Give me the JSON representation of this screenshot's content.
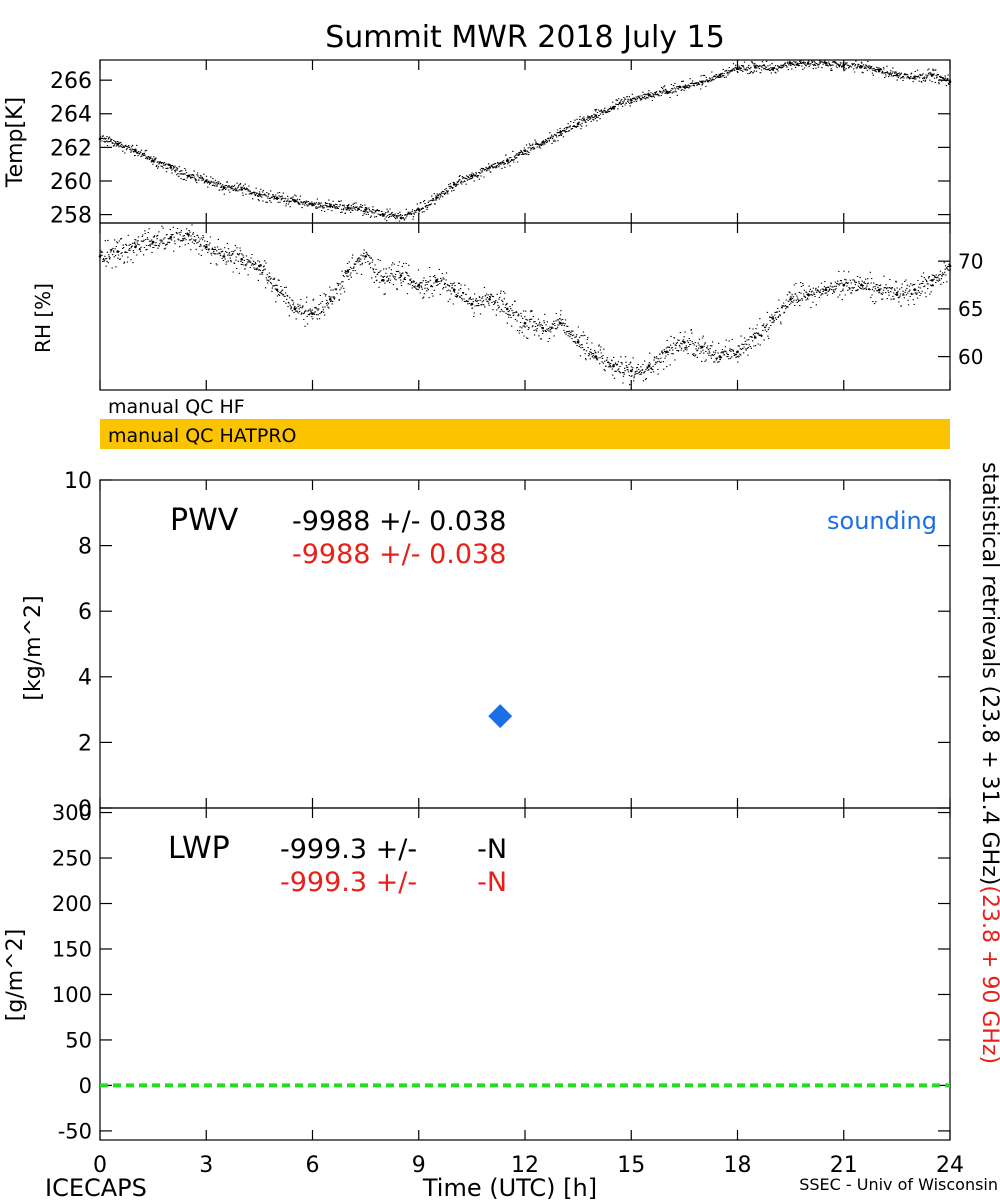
{
  "page": {
    "title": "Summit MWR 2018 July 15",
    "footer_left": "ICECAPS",
    "footer_right": "SSEC - Univ of Wisconsin",
    "right_label_black": "statistical retrievals (23.8 + 31.4 GHz)",
    "right_label_red": "(23.8 + 90 GHz)"
  },
  "colors": {
    "axis": "#000000",
    "red_text": "#e8201a",
    "sounding_blue": "#1a6fe6",
    "qc_orange": "#fcc400",
    "lwp_green": "#22dd22"
  },
  "qc": {
    "hf_label": "manual QC HF",
    "hatpro_label": "manual QC HATPRO"
  },
  "chart_data": [
    {
      "name": "temperature",
      "type": "scatter",
      "ylabel": "Temp[K]",
      "xlim": [
        0,
        24
      ],
      "ylim": [
        257.5,
        267.2
      ],
      "yticks": [
        "258",
        "260",
        "262",
        "264",
        "266"
      ],
      "x": [
        0,
        0.5,
        1,
        1.5,
        2,
        2.5,
        3,
        3.5,
        4,
        4.5,
        5,
        5.5,
        6,
        6.5,
        7,
        7.5,
        8,
        8.5,
        9,
        9.5,
        10,
        10.5,
        11,
        11.5,
        12,
        12.5,
        13,
        13.5,
        14,
        14.5,
        15,
        15.5,
        16,
        16.5,
        17,
        17.5,
        18,
        18.5,
        19,
        19.5,
        20,
        20.5,
        21,
        21.5,
        22,
        22.5,
        23,
        23.5,
        24
      ],
      "y": [
        262.5,
        262.2,
        261.8,
        261.2,
        260.8,
        260.3,
        260.0,
        259.6,
        259.5,
        259.2,
        259.0,
        258.8,
        258.6,
        258.5,
        258.4,
        258.3,
        258.0,
        257.8,
        258.3,
        259.0,
        259.8,
        260.3,
        260.8,
        261.2,
        261.8,
        262.3,
        262.9,
        263.4,
        263.9,
        264.4,
        264.8,
        265.1,
        265.3,
        265.6,
        265.9,
        266.3,
        266.7,
        266.8,
        266.7,
        267.0,
        267.0,
        267.0,
        266.9,
        266.8,
        266.6,
        266.3,
        266.2,
        266.3,
        265.9
      ],
      "noise": 0.25
    },
    {
      "name": "relative_humidity",
      "type": "scatter",
      "ylabel": "RH [%]",
      "xlim": [
        0,
        24
      ],
      "ylim": [
        56.5,
        74
      ],
      "yticks": [
        "60",
        "65",
        "70"
      ],
      "x": [
        0,
        0.5,
        1,
        1.5,
        2,
        2.5,
        3,
        3.5,
        4,
        4.5,
        5,
        5.5,
        6,
        6.5,
        7,
        7.5,
        8,
        8.5,
        9,
        9.5,
        10,
        10.5,
        11,
        11.5,
        12,
        12.5,
        13,
        13.5,
        14,
        14.5,
        15,
        15.5,
        16,
        16.5,
        17,
        17.5,
        18,
        18.5,
        19,
        19.5,
        20,
        20.5,
        21,
        21.5,
        22,
        22.5,
        23,
        23.5,
        24
      ],
      "y": [
        70.5,
        71.0,
        71.5,
        72.0,
        72.5,
        72.8,
        71.5,
        70.5,
        70.2,
        69.5,
        67.0,
        65.0,
        64.5,
        66.0,
        69.0,
        70.5,
        68.0,
        68.5,
        67.5,
        68.0,
        67.0,
        65.5,
        66.0,
        65.0,
        63.5,
        63.0,
        63.5,
        61.5,
        60.0,
        59.0,
        58.5,
        59.0,
        60.5,
        61.5,
        61.0,
        60.0,
        60.5,
        62.0,
        64.0,
        66.0,
        66.5,
        67.0,
        67.5,
        67.5,
        67.0,
        66.5,
        67.0,
        68.0,
        69.5
      ],
      "noise": 1.0
    },
    {
      "name": "pwv",
      "type": "scatter",
      "ylabel": "[kg/m^2]",
      "xlim": [
        0,
        24
      ],
      "ylim": [
        0,
        10
      ],
      "yticks": [
        "0",
        "2",
        "4",
        "6",
        "8",
        "10"
      ],
      "label": "PWV",
      "stat_black": "-9988 +/- 0.038",
      "stat_red": "-9988 +/- 0.038",
      "legend": "sounding",
      "points": [
        {
          "x": 11.3,
          "y": 2.8
        }
      ]
    },
    {
      "name": "lwp",
      "type": "line",
      "ylabel": "[g/m^2]",
      "xlim": [
        0,
        24
      ],
      "ylim": [
        -60,
        305
      ],
      "yticks": [
        "-50",
        "0",
        "50",
        "100",
        "150",
        "200",
        "250",
        "300"
      ],
      "label": "LWP",
      "stat_black": "-999.3 +/-       -N",
      "stat_red": "-999.3 +/-       -N",
      "line_y": 0,
      "xlabel": "Time (UTC) [h]",
      "xticks": [
        "0",
        "3",
        "6",
        "9",
        "12",
        "15",
        "18",
        "21",
        "24"
      ]
    }
  ]
}
